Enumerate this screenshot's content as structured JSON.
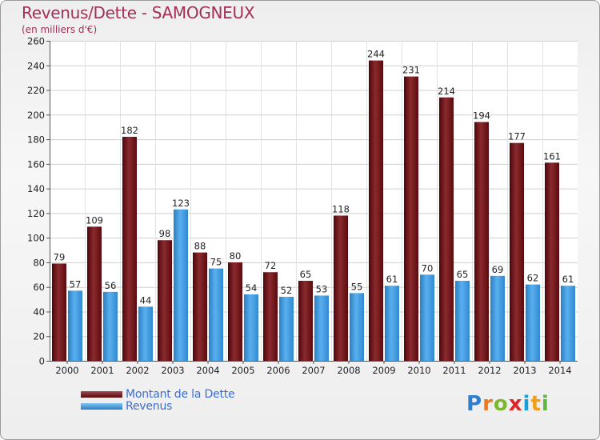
{
  "title": "Revenus/Dette - SAMOGNEUX",
  "subtitle": "(en milliers d'€)",
  "colors": {
    "debt": "#6e0d12",
    "revenue": "#3b96dc",
    "title": "#a0305a",
    "legend_text": "#3d6ecf"
  },
  "legend": {
    "debt_label": "Montant de la Dette",
    "revenue_label": "Revenus"
  },
  "logo": {
    "text": "Proxiti",
    "letters": [
      {
        "char": "P",
        "color": "#2e7fd0"
      },
      {
        "char": "r",
        "color": "#f07818"
      },
      {
        "char": "o",
        "color": "#7cb82f"
      },
      {
        "char": "x",
        "color": "#e02525"
      },
      {
        "char": "i",
        "color": "#1aa0d8"
      },
      {
        "char": "t",
        "color": "#f0a018"
      },
      {
        "char": "i",
        "color": "#5cb83c"
      }
    ]
  },
  "chart_data": {
    "type": "bar",
    "title": "Revenus/Dette - SAMOGNEUX",
    "ylabel": "(en milliers d'€)",
    "xlabel": "",
    "ylim": [
      0,
      260
    ],
    "yticks": [
      0,
      20,
      40,
      60,
      80,
      100,
      120,
      140,
      160,
      180,
      200,
      220,
      240,
      260
    ],
    "grid": true,
    "legend_position": "bottom-left",
    "categories": [
      "2000",
      "2001",
      "2002",
      "2003",
      "2004",
      "2005",
      "2006",
      "2007",
      "2008",
      "2009",
      "2010",
      "2011",
      "2012",
      "2013",
      "2014"
    ],
    "series": [
      {
        "name": "Montant de la Dette",
        "values": [
          79,
          109,
          182,
          98,
          88,
          80,
          72,
          65,
          118,
          244,
          231,
          214,
          194,
          177,
          161
        ]
      },
      {
        "name": "Revenus",
        "values": [
          57,
          56,
          44,
          123,
          75,
          54,
          52,
          53,
          55,
          61,
          70,
          65,
          69,
          62,
          61
        ]
      }
    ]
  }
}
